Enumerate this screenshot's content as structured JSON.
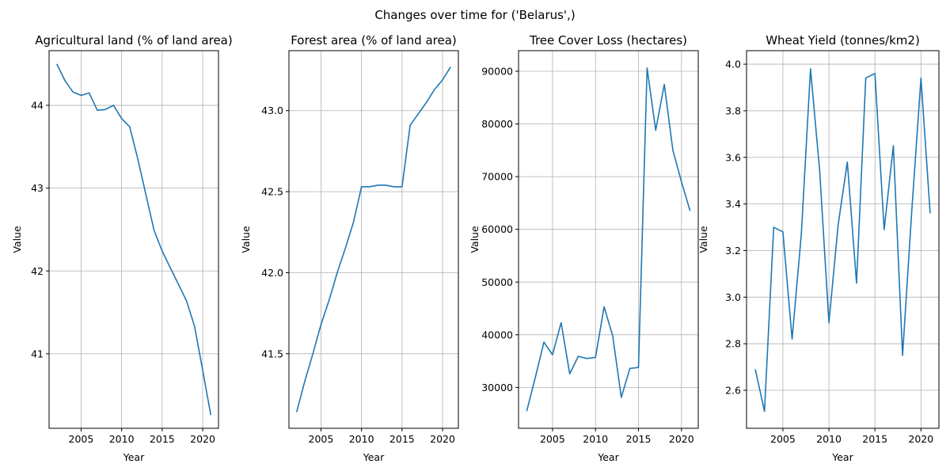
{
  "suptitle": "Changes over time for ('Belarus',)",
  "line_color": "#1f77b4",
  "grid_color": "#b0b0b0",
  "chart_data": [
    {
      "type": "line",
      "title": "Agricultural land (% of land area)",
      "xlabel": "Year",
      "ylabel": "Value",
      "grid": true,
      "x": [
        2002,
        2003,
        2004,
        2005,
        2006,
        2007,
        2008,
        2009,
        2010,
        2011,
        2012,
        2013,
        2014,
        2015,
        2016,
        2017,
        2018,
        2019,
        2020,
        2021
      ],
      "y": [
        44.5,
        44.3,
        44.16,
        44.12,
        44.15,
        43.94,
        43.95,
        44.0,
        43.84,
        43.74,
        43.35,
        42.92,
        42.49,
        42.24,
        42.04,
        41.84,
        41.64,
        41.33,
        40.8,
        40.26
      ],
      "xlim": [
        2001.05,
        2021.95
      ],
      "ylim": [
        40.1,
        44.66
      ],
      "xticks": [
        2005,
        2010,
        2015,
        2020
      ],
      "yticks": [
        41,
        42,
        43,
        44
      ]
    },
    {
      "type": "line",
      "title": "Forest area (% of land area)",
      "xlabel": "Year",
      "ylabel": "Value",
      "grid": true,
      "x": [
        2002,
        2003,
        2004,
        2005,
        2006,
        2007,
        2008,
        2009,
        2010,
        2011,
        2012,
        2013,
        2014,
        2015,
        2016,
        2017,
        2018,
        2019,
        2020,
        2021
      ],
      "y": [
        41.14,
        41.33,
        41.5,
        41.68,
        41.83,
        42.0,
        42.15,
        42.31,
        42.53,
        42.53,
        42.54,
        42.54,
        42.53,
        42.53,
        42.91,
        42.98,
        43.05,
        43.13,
        43.19,
        43.27
      ],
      "xlim": [
        2001.05,
        2021.95
      ],
      "ylim": [
        41.04,
        43.37
      ],
      "xticks": [
        2005,
        2010,
        2015,
        2020
      ],
      "yticks": [
        41.5,
        42.0,
        42.5,
        43.0
      ]
    },
    {
      "type": "line",
      "title": "Tree Cover Loss (hectares)",
      "xlabel": "Year",
      "ylabel": "Value",
      "grid": true,
      "x": [
        2002,
        2003,
        2004,
        2005,
        2006,
        2007,
        2008,
        2009,
        2010,
        2011,
        2012,
        2013,
        2014,
        2015,
        2016,
        2017,
        2018,
        2019,
        2020,
        2021
      ],
      "y": [
        25500,
        31900,
        38600,
        36200,
        42300,
        32600,
        35900,
        35500,
        35700,
        45300,
        39800,
        28100,
        33600,
        33800,
        90600,
        78800,
        87500,
        75000,
        69000,
        63500
      ],
      "xlim": [
        2001.05,
        2021.95
      ],
      "ylim": [
        22250,
        93900
      ],
      "xticks": [
        2005,
        2010,
        2015,
        2020
      ],
      "yticks": [
        30000,
        40000,
        50000,
        60000,
        70000,
        80000,
        90000
      ]
    },
    {
      "type": "line",
      "title": "Wheat Yield (tonnes/km2)",
      "xlabel": "Year",
      "ylabel": "Value",
      "grid": true,
      "x": [
        2002,
        2003,
        2004,
        2005,
        2006,
        2007,
        2008,
        2009,
        2010,
        2011,
        2012,
        2013,
        2014,
        2015,
        2016,
        2017,
        2018,
        2019,
        2020,
        2021
      ],
      "y": [
        2.69,
        2.51,
        3.3,
        3.28,
        2.82,
        3.27,
        3.98,
        3.54,
        2.89,
        3.31,
        3.58,
        3.06,
        3.94,
        3.96,
        3.29,
        3.65,
        2.75,
        3.37,
        3.94,
        3.36
      ],
      "xlim": [
        2001.05,
        2021.95
      ],
      "ylim": [
        2.437,
        4.058
      ],
      "xticks": [
        2005,
        2010,
        2015,
        2020
      ],
      "yticks": [
        2.6,
        2.8,
        3.0,
        3.2,
        3.4,
        3.6,
        3.8,
        4.0
      ]
    }
  ]
}
